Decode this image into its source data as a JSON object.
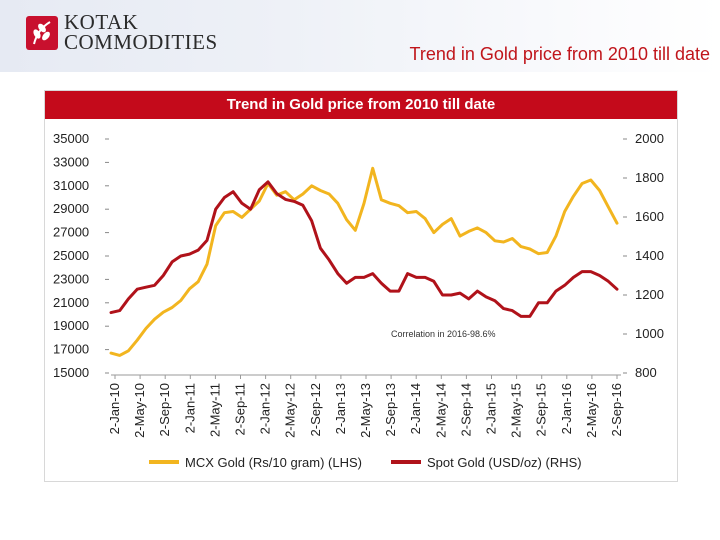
{
  "header": {
    "logo_line1": "KOTAK",
    "logo_line2": "COMMODITIES",
    "slide_title": "Trend in Gold price from 2010 till date"
  },
  "colors": {
    "accent_red": "#c0151b",
    "banner_red": "#c40a1b",
    "mcx_series": "#f2b51f",
    "spot_series": "#b0121a"
  },
  "chart_data": {
    "type": "line",
    "title": "Trend in Gold price from 2010 till date",
    "annotation": "Correlation in 2016-98.6%",
    "x_tick_labels": [
      "2-Jan-10",
      "2-May-10",
      "2-Sep-10",
      "2-Jan-11",
      "2-May-11",
      "2-Sep-11",
      "2-Jan-12",
      "2-May-12",
      "2-Sep-12",
      "2-Jan-13",
      "2-May-13",
      "2-Sep-13",
      "2-Jan-14",
      "2-May-14",
      "2-Sep-14",
      "2-Jan-15",
      "2-May-15",
      "2-Sep-15",
      "2-Jan-16",
      "2-May-16",
      "2-Sep-16"
    ],
    "left_axis": {
      "min": 15000,
      "max": 35000,
      "ticks": [
        15000,
        17000,
        19000,
        21000,
        23000,
        25000,
        27000,
        29000,
        31000,
        33000,
        35000
      ]
    },
    "right_axis": {
      "min": 800,
      "max": 2000,
      "ticks": [
        800,
        1000,
        1200,
        1400,
        1600,
        1800,
        2000
      ]
    },
    "legend_position": "bottom",
    "grid": false,
    "series": [
      {
        "name": "MCX Gold (Rs/10 gram) (LHS)",
        "axis": "left",
        "values": [
          16700,
          16500,
          16900,
          17800,
          18800,
          19600,
          20200,
          20600,
          21200,
          22200,
          22800,
          24300,
          27600,
          28700,
          28800,
          28300,
          29000,
          29700,
          31200,
          30200,
          30500,
          29800,
          30300,
          31000,
          30600,
          30300,
          29500,
          28100,
          27200,
          29500,
          32500,
          29800,
          29500,
          29300,
          28700,
          28800,
          28200,
          27000,
          27700,
          28200,
          26700,
          27100,
          27400,
          27000,
          26300,
          26200,
          26500,
          25800,
          25600,
          25200,
          25300,
          26700,
          28800,
          30100,
          31200,
          31500,
          30600,
          29200,
          27800
        ]
      },
      {
        "name": "Spot Gold (USD/oz) (RHS)",
        "axis": "right",
        "values": [
          1110,
          1120,
          1180,
          1230,
          1240,
          1250,
          1300,
          1370,
          1400,
          1410,
          1430,
          1480,
          1640,
          1700,
          1730,
          1670,
          1640,
          1740,
          1780,
          1720,
          1690,
          1680,
          1660,
          1580,
          1440,
          1380,
          1310,
          1260,
          1290,
          1290,
          1310,
          1260,
          1220,
          1220,
          1310,
          1290,
          1290,
          1270,
          1200,
          1200,
          1210,
          1180,
          1220,
          1190,
          1170,
          1130,
          1120,
          1090,
          1090,
          1160,
          1160,
          1220,
          1250,
          1290,
          1320,
          1320,
          1300,
          1270,
          1230
        ]
      }
    ]
  }
}
